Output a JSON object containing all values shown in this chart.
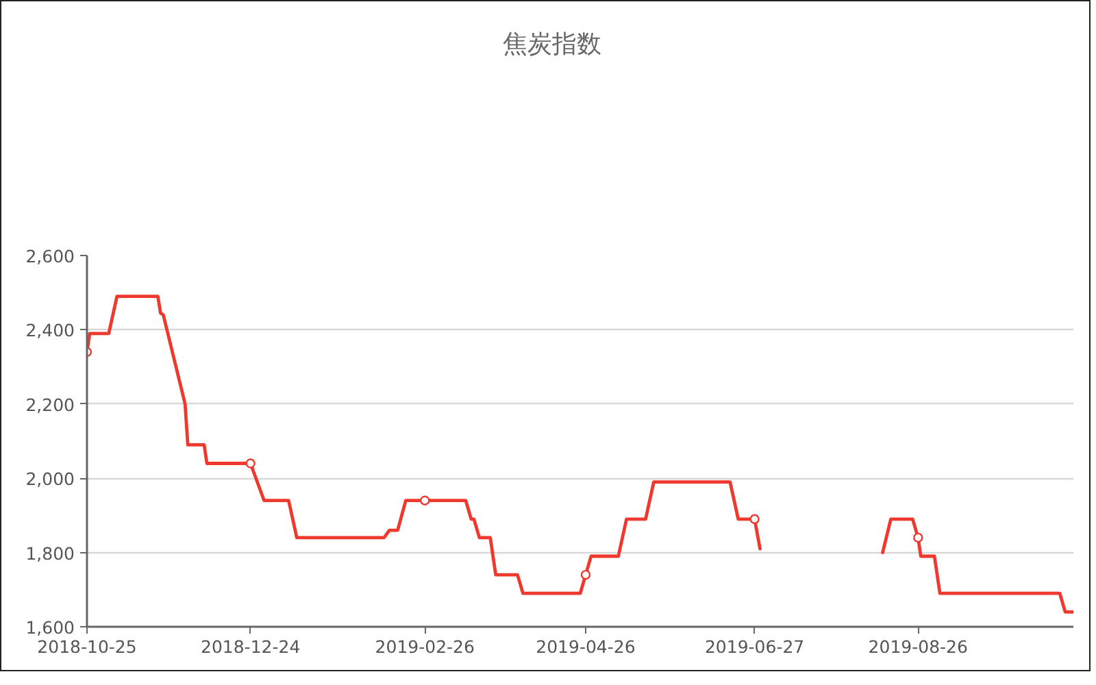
{
  "chart_data": {
    "type": "line",
    "title": "焦炭指数",
    "series": [
      {
        "color": "#f0392e",
        "line_style": "solid",
        "x": [
          "2018-10-25",
          "2018-10-26",
          "2018-11-02",
          "2018-11-05",
          "2018-11-20",
          "2018-11-21",
          "2018-11-22",
          "2018-11-30",
          "2018-12-01",
          "2018-12-07",
          "2018-12-08",
          "2018-12-24",
          "2018-12-29",
          "2019-01-07",
          "2019-01-10",
          "2019-02-11",
          "2019-02-13",
          "2019-02-16",
          "2019-02-19",
          "2019-02-26",
          "2019-03-13",
          "2019-03-15",
          "2019-03-16",
          "2019-03-18",
          "2019-03-22",
          "2019-03-24",
          "2019-04-01",
          "2019-04-03",
          "2019-04-24",
          "2019-04-26",
          "2019-04-28",
          "2019-05-08",
          "2019-05-11",
          "2019-05-18",
          "2019-05-21",
          "2019-06-18",
          "2019-06-21",
          "2019-06-27",
          "2019-06-29",
          "2019-07-20",
          "2019-08-13",
          "2019-08-16",
          "2019-08-24",
          "2019-08-26",
          "2019-08-27",
          "2019-09-01",
          "2019-09-03",
          "2019-10-17",
          "2019-10-19",
          "2019-10-22"
        ],
        "values": [
          2340,
          2390,
          2390,
          2490,
          2490,
          2445,
          2440,
          2200,
          2090,
          2090,
          2040,
          2040,
          1940,
          1940,
          1840,
          1840,
          1860,
          1860,
          1940,
          1940,
          1940,
          1890,
          1890,
          1840,
          1840,
          1740,
          1740,
          1690,
          1690,
          1740,
          1790,
          1790,
          1890,
          1890,
          1990,
          1990,
          1890,
          1890,
          1810,
          null,
          1800,
          1890,
          1890,
          1840,
          1790,
          1790,
          1690,
          1690,
          1640,
          1640
        ]
      },
      {
        "type": "scatter",
        "color": "#f0392e",
        "marker": "circle",
        "x": [
          "2018-10-25",
          "2018-12-24",
          "2019-02-26",
          "2019-04-26",
          "2019-06-27",
          "2019-08-26"
        ],
        "values": [
          2340,
          2040,
          1940,
          1740,
          1890,
          1840
        ]
      }
    ],
    "xlim": [
      "2018-10-25",
      "2019-10-22"
    ],
    "xticks": [
      "2018-10-25",
      "2018-12-24",
      "2019-02-26",
      "2019-04-26",
      "2019-06-27",
      "2019-08-26"
    ],
    "ylim": [
      1600,
      2600
    ],
    "yticks": [
      {
        "value": 1600,
        "label": "1,600"
      },
      {
        "value": 1800,
        "label": "1,800"
      },
      {
        "value": 2000,
        "label": "2,000"
      },
      {
        "value": 2200,
        "label": "2,200"
      },
      {
        "value": 2400,
        "label": "2,400"
      },
      {
        "value": 2600,
        "label": "2,600"
      }
    ],
    "grid": "y"
  }
}
